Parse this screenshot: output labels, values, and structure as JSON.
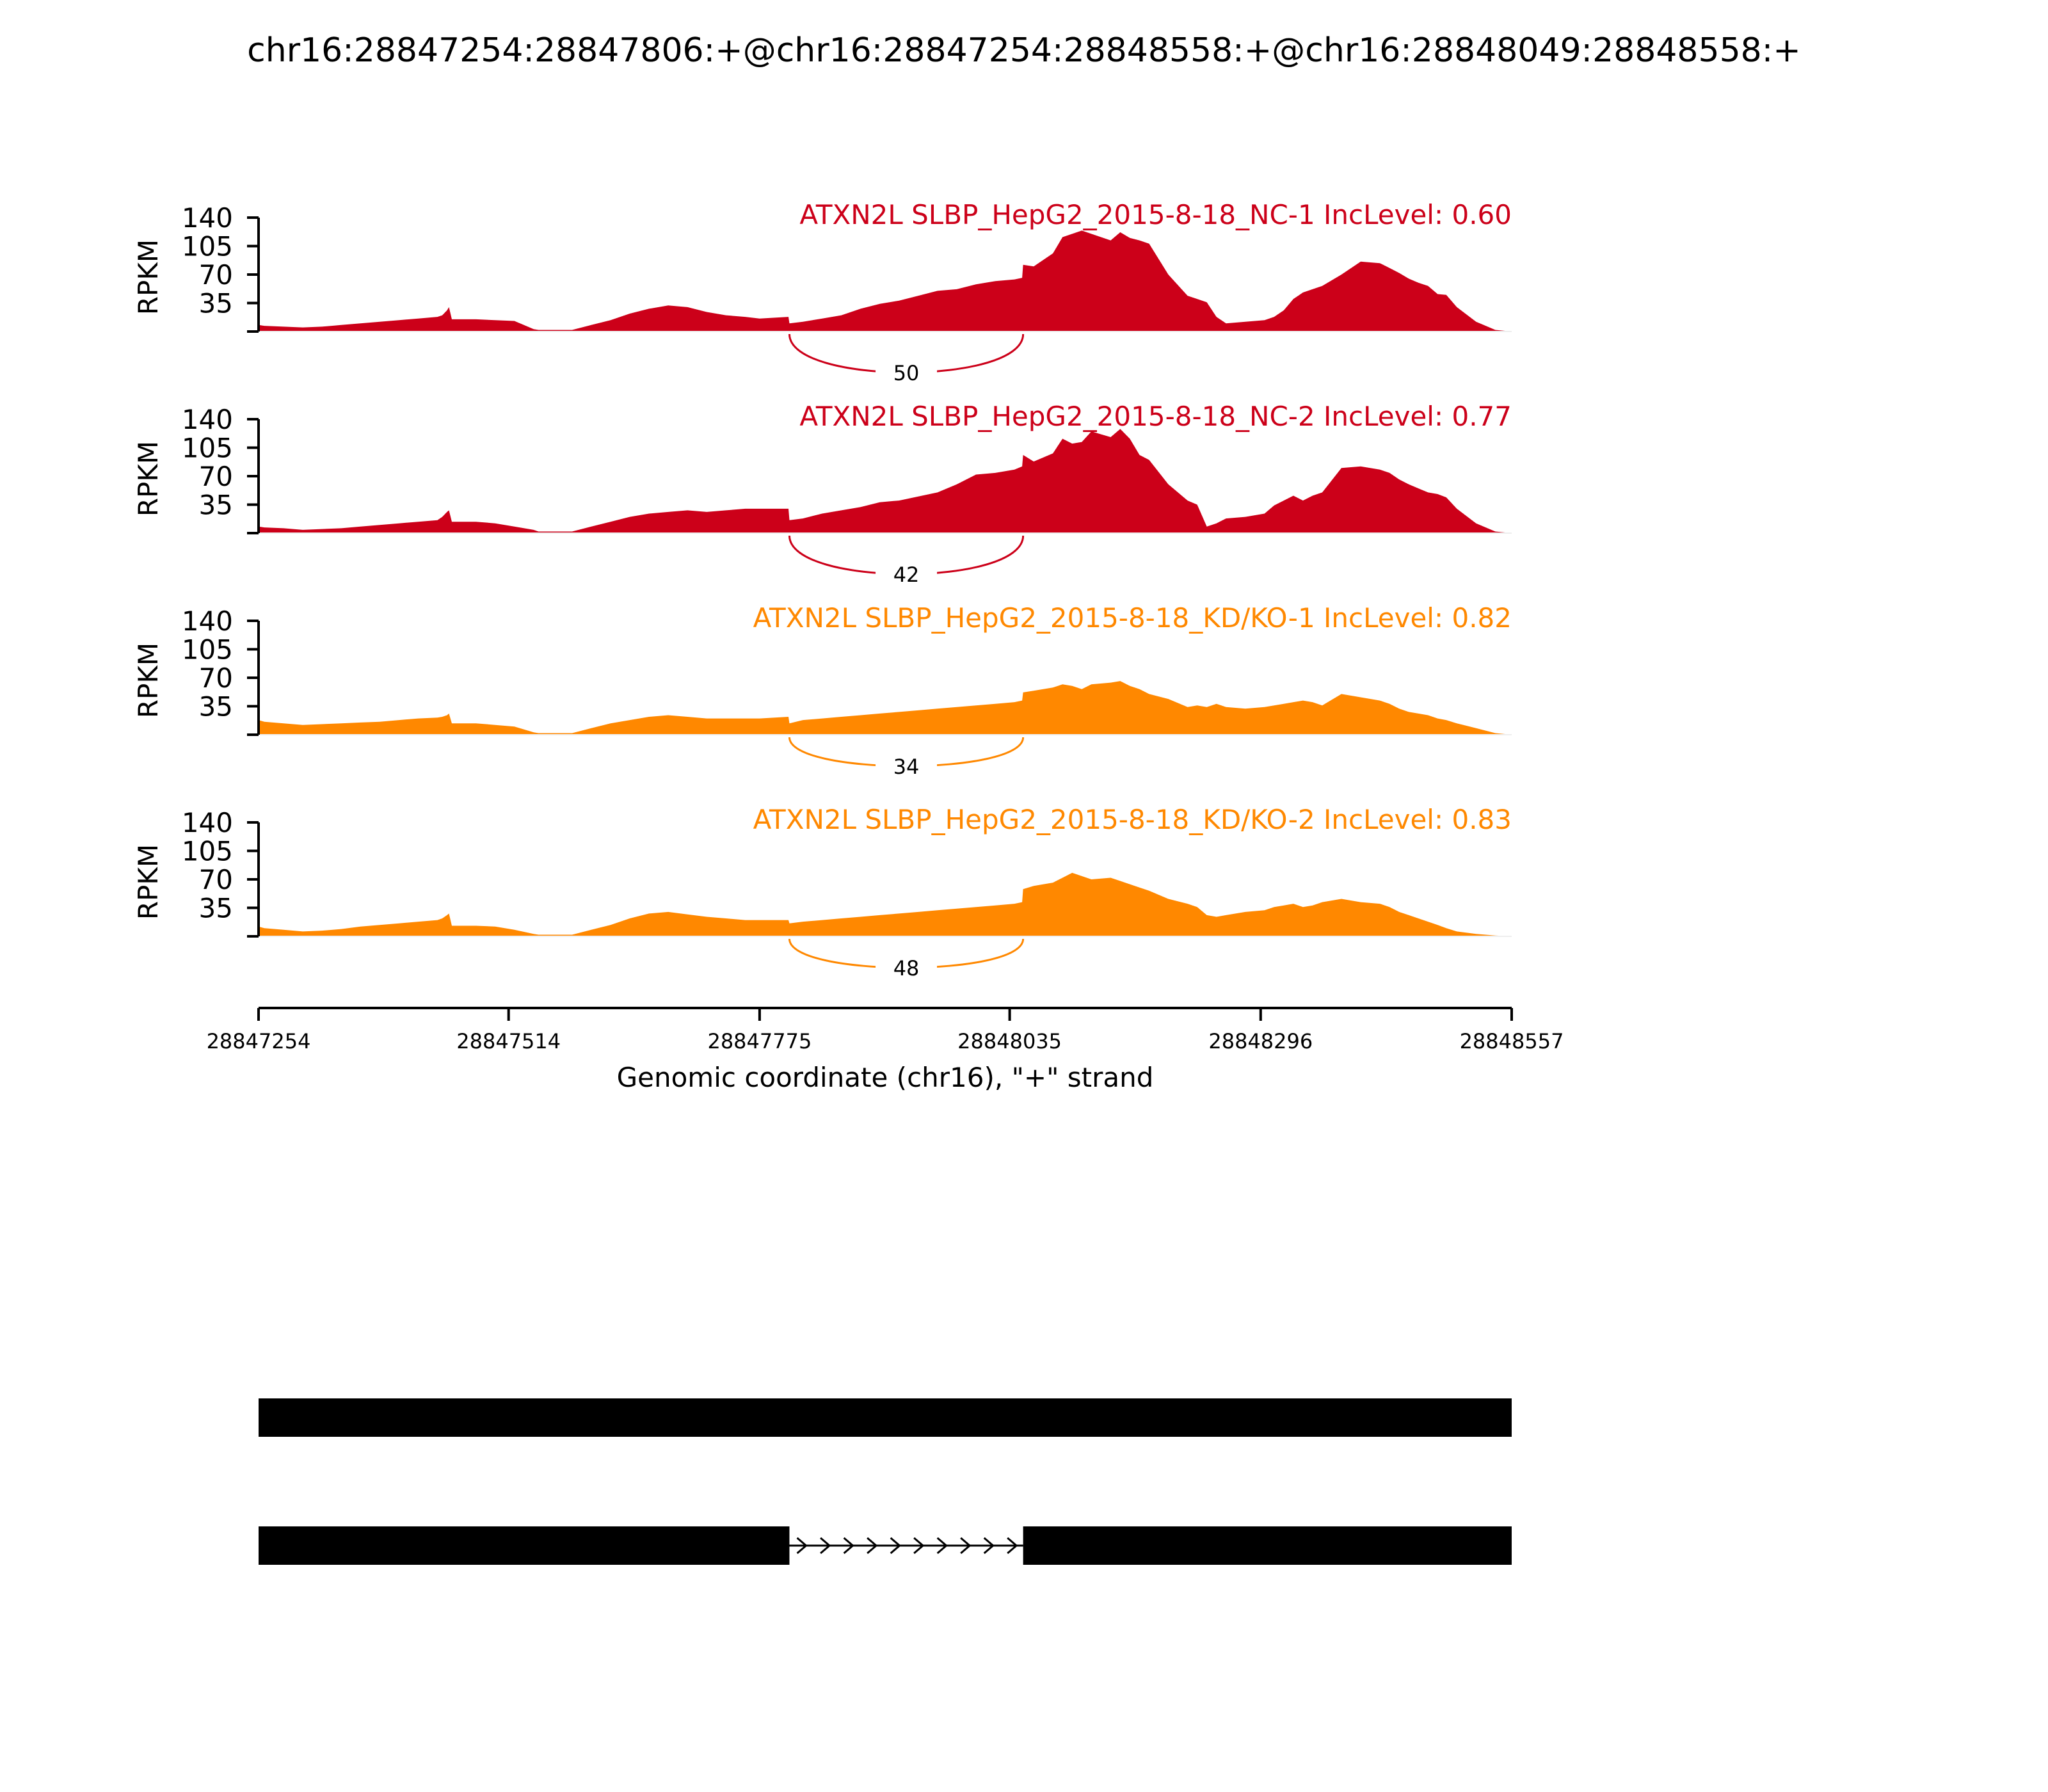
{
  "title": "chr16:28847254:28847806:+@chr16:28847254:28848558:+@chr16:28848049:28848558:+",
  "xaxis": {
    "label": "Genomic coordinate (chr16), \"+\" strand",
    "range": [
      28847254,
      28848557
    ],
    "ticks": [
      "28847254",
      "28847514",
      "28847775",
      "28848035",
      "28848296",
      "28848557"
    ],
    "tick_values": [
      28847254,
      28847514,
      28847775,
      28848035,
      28848296,
      28848557
    ]
  },
  "colors": {
    "nc": "#cc0019",
    "kd": "#ff8800",
    "gene": "#000000"
  },
  "chart_data": {
    "type": "area",
    "ylabel": "RPKM",
    "ylim": [
      0,
      140
    ],
    "yticks": [
      "140",
      "105",
      "70",
      "35"
    ],
    "ytick_values": [
      140,
      105,
      70,
      35
    ],
    "x": [
      28847254,
      28847260,
      28847280,
      28847300,
      28847320,
      28847340,
      28847360,
      28847380,
      28847400,
      28847420,
      28847440,
      28847445,
      28847450,
      28847452,
      28847455,
      28847480,
      28847500,
      28847520,
      28847540,
      28847545,
      28847560,
      28847580,
      28847600,
      28847620,
      28847640,
      28847660,
      28847680,
      28847700,
      28847720,
      28847740,
      28847760,
      28847775,
      28847805,
      28847806,
      28847820,
      28847840,
      28847860,
      28847880,
      28847900,
      28847920,
      28847940,
      28847960,
      28847980,
      28848000,
      28848020,
      28848040,
      28848048,
      28848049,
      28848060,
      28848080,
      28848090,
      28848100,
      28848110,
      28848120,
      28848140,
      28848150,
      28848160,
      28848170,
      28848180,
      28848200,
      28848220,
      28848230,
      28848240,
      28848250,
      28848260,
      28848280,
      28848300,
      28848310,
      28848320,
      28848330,
      28848340,
      28848350,
      28848360,
      28848380,
      28848400,
      28848420,
      28848430,
      28848440,
      28848450,
      28848460,
      28848470,
      28848480,
      28848489,
      28848500,
      28848520,
      28848540,
      28848557
    ],
    "series": [
      {
        "name": "ATXN2L SLBP_HepG2_2015-8-18_NC-1 IncLevel: 0.60",
        "junction": {
          "from": 28847806,
          "to": 28848049,
          "count": "50"
        },
        "values": [
          8,
          7,
          6,
          5,
          6,
          8,
          10,
          12,
          14,
          16,
          18,
          20,
          26,
          30,
          15,
          15,
          14,
          13,
          3,
          2,
          2,
          2,
          8,
          14,
          22,
          28,
          32,
          30,
          24,
          20,
          18,
          16,
          18,
          10,
          12,
          16,
          20,
          28,
          34,
          38,
          44,
          50,
          52,
          58,
          62,
          64,
          66,
          82,
          80,
          96,
          116,
          120,
          124,
          120,
          112,
          122,
          115,
          112,
          108,
          70,
          44,
          40,
          36,
          18,
          10,
          12,
          14,
          18,
          26,
          40,
          48,
          52,
          56,
          70,
          86,
          84,
          78,
          72,
          65,
          60,
          56,
          46,
          45,
          30,
          12,
          2,
          0
        ]
      },
      {
        "name": "ATXN2L SLBP_HepG2_2015-8-18_NC-2 IncLevel: 0.77",
        "junction": {
          "from": 28847806,
          "to": 28848049,
          "count": "42"
        },
        "values": [
          8,
          7,
          6,
          4,
          5,
          6,
          8,
          10,
          12,
          14,
          16,
          20,
          26,
          28,
          14,
          14,
          12,
          8,
          4,
          2,
          2,
          2,
          8,
          14,
          20,
          24,
          26,
          28,
          26,
          28,
          30,
          30,
          30,
          16,
          18,
          24,
          28,
          32,
          38,
          40,
          45,
          50,
          60,
          72,
          74,
          78,
          82,
          96,
          88,
          98,
          116,
          110,
          112,
          125,
          118,
          128,
          116,
          96,
          90,
          60,
          40,
          35,
          8,
          12,
          18,
          20,
          24,
          34,
          40,
          46,
          40,
          46,
          50,
          80,
          82,
          78,
          74,
          66,
          60,
          55,
          50,
          48,
          44,
          30,
          12,
          2,
          0
        ]
      },
      {
        "name": "ATXN2L SLBP_HepG2_2015-8-18_KD/KO-1 IncLevel: 0.82",
        "junction": {
          "from": 28847806,
          "to": 28848049,
          "count": "34"
        },
        "values": [
          18,
          16,
          14,
          12,
          13,
          14,
          15,
          16,
          18,
          20,
          21,
          22,
          24,
          26,
          14,
          14,
          12,
          10,
          3,
          2,
          2,
          2,
          8,
          14,
          18,
          22,
          24,
          22,
          20,
          20,
          20,
          20,
          22,
          14,
          18,
          20,
          22,
          24,
          26,
          28,
          30,
          32,
          34,
          36,
          38,
          40,
          42,
          52,
          54,
          58,
          62,
          60,
          56,
          62,
          64,
          66,
          60,
          56,
          50,
          44,
          34,
          36,
          34,
          38,
          34,
          32,
          34,
          36,
          38,
          40,
          42,
          40,
          36,
          50,
          46,
          42,
          38,
          32,
          28,
          26,
          24,
          20,
          18,
          14,
          8,
          2,
          0
        ]
      },
      {
        "name": "ATXN2L SLBP_HepG2_2015-8-18_KD/KO-2 IncLevel: 0.83",
        "junction": {
          "from": 28847806,
          "to": 28848049,
          "count": "48"
        },
        "values": [
          12,
          10,
          8,
          6,
          7,
          9,
          12,
          14,
          16,
          18,
          20,
          22,
          26,
          28,
          13,
          13,
          12,
          8,
          3,
          2,
          2,
          2,
          8,
          14,
          22,
          28,
          30,
          27,
          24,
          22,
          20,
          20,
          20,
          16,
          18,
          20,
          22,
          24,
          26,
          28,
          30,
          32,
          34,
          36,
          38,
          40,
          42,
          58,
          62,
          66,
          72,
          78,
          74,
          70,
          72,
          68,
          64,
          60,
          56,
          46,
          40,
          36,
          26,
          24,
          26,
          30,
          32,
          36,
          38,
          40,
          36,
          38,
          42,
          46,
          42,
          40,
          36,
          30,
          26,
          22,
          18,
          14,
          10,
          6,
          3,
          1,
          0
        ]
      }
    ]
  },
  "gene_tracks": [
    {
      "segments": [
        [
          28847254,
          28848557
        ]
      ],
      "introns": []
    },
    {
      "segments": [
        [
          28847254,
          28847806
        ],
        [
          28848049,
          28848557
        ]
      ],
      "introns": [
        [
          28847806,
          28848049
        ]
      ]
    }
  ]
}
